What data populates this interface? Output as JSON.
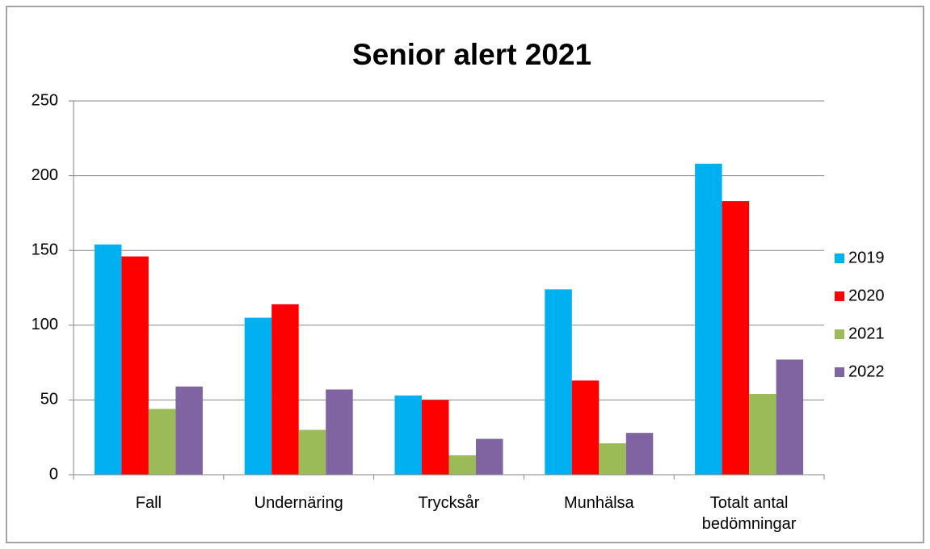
{
  "chart_data": {
    "type": "bar",
    "title": "Senior alert 2021",
    "categories": [
      "Fall",
      "Undernäring",
      "Trycksår",
      "Munhälsa",
      "Totalt antal bedömningar"
    ],
    "series": [
      {
        "name": "2019",
        "color": "#00b0f0",
        "values": [
          154,
          105,
          53,
          124,
          208
        ]
      },
      {
        "name": "2020",
        "color": "#ff0000",
        "values": [
          146,
          114,
          50,
          63,
          183
        ]
      },
      {
        "name": "2021",
        "color": "#9bbb59",
        "values": [
          44,
          30,
          13,
          21,
          54
        ]
      },
      {
        "name": "2022",
        "color": "#8064a2",
        "values": [
          59,
          57,
          24,
          28,
          77
        ]
      }
    ],
    "ylim": [
      0,
      250
    ],
    "yticks": [
      0,
      50,
      100,
      150,
      200,
      250
    ],
    "grid": true,
    "legend": "right"
  }
}
